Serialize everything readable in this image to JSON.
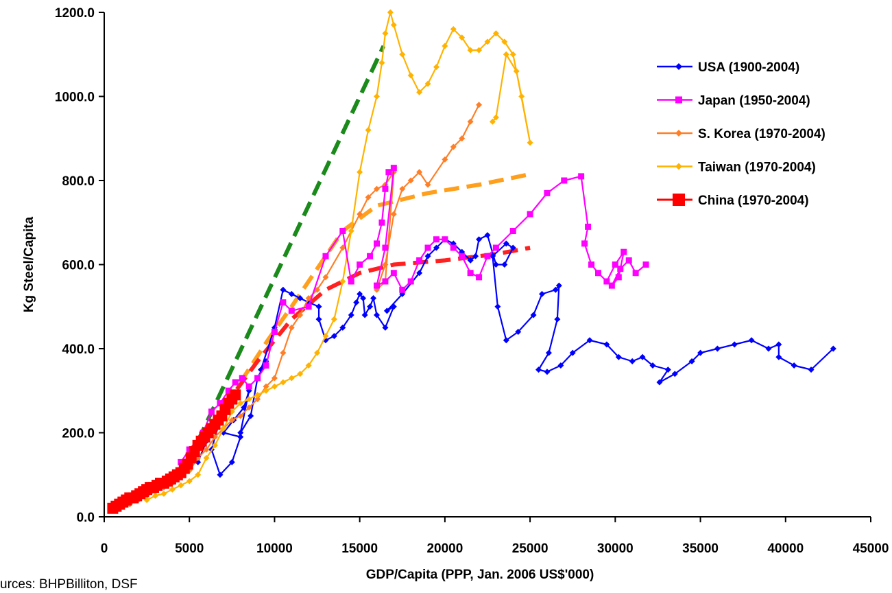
{
  "chart_data": {
    "type": "line",
    "xlabel": "GDP/Capita (PPP, Jan. 2006 US$'000)",
    "ylabel": "Kg Steel/Capita",
    "xlim": [
      0,
      45000
    ],
    "ylim": [
      0,
      1200
    ],
    "xticks": [
      0,
      5000,
      10000,
      15000,
      20000,
      25000,
      30000,
      35000,
      40000,
      45000
    ],
    "xtick_labels": [
      "0",
      "5000",
      "10000",
      "15000",
      "20000",
      "25000",
      "30000",
      "35000",
      "40000",
      "45000"
    ],
    "yticks": [
      0,
      200,
      400,
      600,
      800,
      1000,
      1200
    ],
    "ytick_labels": [
      "0.0",
      "200.0",
      "400.0",
      "600.0",
      "800.0",
      "1000.0",
      "1200.0"
    ],
    "grid": false,
    "legend_position": "top-right",
    "series": [
      {
        "name": "USA (1900-2004)",
        "color": "#0000ff",
        "marker": "diamond",
        "x": [
          5500,
          6000,
          6500,
          7000,
          6300,
          6800,
          7500,
          8000,
          7000,
          7600,
          8200,
          8500,
          8000,
          8600,
          9000,
          9500,
          9200,
          10000,
          10500,
          11000,
          11500,
          12000,
          12600,
          12600,
          13000,
          13500,
          14000,
          14500,
          14800,
          15000,
          15200,
          15300,
          15600,
          15800,
          16000,
          16500,
          17000,
          16600,
          17500,
          18500,
          19000,
          19500,
          20000,
          20500,
          21000,
          21500,
          21800,
          22000,
          22500,
          23000,
          23500,
          24000,
          23600,
          22800,
          23100,
          23600,
          24300,
          25200,
          25700,
          26500,
          26700,
          26600,
          26100,
          25500,
          26000,
          26800,
          27500,
          28500,
          29500,
          30200,
          31000,
          31600,
          32200,
          33100,
          32600,
          33500,
          34500,
          35000,
          36000,
          37000,
          38000,
          39000,
          39600,
          39600,
          40500,
          41500,
          42800
        ],
        "y": [
          130,
          180,
          220,
          260,
          160,
          100,
          130,
          190,
          200,
          230,
          260,
          300,
          200,
          240,
          330,
          370,
          350,
          450,
          540,
          530,
          520,
          510,
          500,
          470,
          420,
          430,
          450,
          480,
          510,
          530,
          520,
          480,
          500,
          520,
          480,
          450,
          500,
          490,
          530,
          580,
          620,
          640,
          660,
          650,
          630,
          610,
          620,
          660,
          670,
          600,
          600,
          640,
          650,
          620,
          500,
          420,
          440,
          480,
          530,
          540,
          550,
          470,
          390,
          350,
          345,
          360,
          390,
          420,
          410,
          380,
          370,
          380,
          360,
          350,
          320,
          340,
          370,
          390,
          400,
          410,
          420,
          400,
          410,
          380,
          360,
          350,
          400
        ]
      },
      {
        "name": "Japan (1950-2004)",
        "color": "#ff00ff",
        "marker": "square",
        "x": [
          4500,
          5000,
          5800,
          6300,
          6800,
          7300,
          7700,
          8100,
          8500,
          9000,
          9500,
          10000,
          10500,
          11000,
          12000,
          13000,
          14000,
          14500,
          15000,
          15600,
          16000,
          16300,
          16500,
          16700,
          17000,
          16500,
          16000,
          16500,
          17000,
          17500,
          18000,
          18500,
          19000,
          19500,
          20000,
          20500,
          21000,
          21500,
          22000,
          22500,
          23000,
          24000,
          25000,
          26000,
          27000,
          28000,
          28400,
          28200,
          28600,
          29000,
          29500,
          30000,
          30500,
          30200,
          29800,
          30300,
          30800,
          31200,
          31800
        ],
        "y": [
          130,
          160,
          200,
          250,
          270,
          300,
          320,
          330,
          310,
          330,
          360,
          440,
          510,
          490,
          500,
          620,
          680,
          560,
          600,
          620,
          650,
          700,
          780,
          820,
          830,
          640,
          550,
          560,
          580,
          540,
          560,
          610,
          640,
          660,
          660,
          640,
          620,
          580,
          570,
          620,
          640,
          680,
          720,
          770,
          800,
          810,
          690,
          650,
          600,
          580,
          560,
          600,
          630,
          570,
          550,
          590,
          610,
          580,
          600
        ]
      },
      {
        "name": "S. Korea (1970-2004)",
        "color": "#ff7f27",
        "marker": "diamond",
        "x": [
          1500,
          2000,
          2500,
          3000,
          3500,
          4000,
          4500,
          5000,
          5500,
          6000,
          6500,
          7000,
          7500,
          8000,
          8500,
          9000,
          9500,
          10000,
          10500,
          11000,
          11500,
          12000,
          12500,
          13000,
          14000,
          15000,
          15500,
          16000,
          16500,
          17000,
          16500,
          16000,
          16500,
          17000,
          17500,
          18000,
          18500,
          19000,
          20000,
          20500,
          21000,
          21500,
          22000
        ],
        "y": [
          30,
          40,
          50,
          60,
          70,
          80,
          100,
          110,
          140,
          160,
          190,
          210,
          230,
          240,
          260,
          280,
          310,
          330,
          390,
          450,
          480,
          520,
          540,
          570,
          640,
          720,
          760,
          780,
          790,
          820,
          560,
          540,
          600,
          720,
          780,
          800,
          820,
          790,
          850,
          880,
          900,
          940,
          980
        ]
      },
      {
        "name": "Taiwan (1970-2004)",
        "color": "#ffb300",
        "marker": "diamond",
        "x": [
          2500,
          3000,
          3500,
          4000,
          4500,
          5000,
          5500,
          6000,
          6500,
          7000,
          7500,
          8000,
          8500,
          9000,
          9500,
          10000,
          10500,
          11000,
          11500,
          12000,
          12500,
          13000,
          13500,
          14000,
          14500,
          15000,
          15500,
          16000,
          16300,
          16500,
          16800,
          17000,
          17500,
          18000,
          18500,
          19000,
          19500,
          20000,
          20500,
          21000,
          21500,
          22000,
          22500,
          23000,
          23500,
          24000,
          24500,
          25000,
          24200,
          23600,
          23000,
          22800
        ],
        "y": [
          40,
          50,
          55,
          65,
          75,
          85,
          100,
          140,
          170,
          210,
          250,
          270,
          280,
          290,
          300,
          310,
          320,
          330,
          340,
          360,
          390,
          430,
          470,
          560,
          680,
          820,
          920,
          1000,
          1080,
          1150,
          1200,
          1170,
          1100,
          1050,
          1010,
          1030,
          1070,
          1120,
          1160,
          1140,
          1110,
          1110,
          1130,
          1150,
          1130,
          1100,
          1000,
          890,
          1060,
          1100,
          950,
          940
        ]
      },
      {
        "name": "China (1970-2004)",
        "color": "#ff0000",
        "marker": "square",
        "x": [
          500,
          700,
          900,
          1100,
          1300,
          1500,
          1700,
          1900,
          2100,
          2300,
          2500,
          2700,
          2900,
          3100,
          3300,
          3500,
          3700,
          3900,
          4100,
          4300,
          4500,
          4700,
          4900,
          5100,
          5300,
          5500,
          5700,
          5900,
          6100,
          6300,
          6500,
          6700,
          6900,
          7100,
          7300,
          7500,
          7700
        ],
        "y": [
          20,
          25,
          30,
          35,
          40,
          45,
          45,
          50,
          55,
          60,
          65,
          70,
          70,
          75,
          80,
          80,
          85,
          90,
          95,
          100,
          105,
          115,
          125,
          140,
          155,
          170,
          180,
          190,
          200,
          210,
          220,
          230,
          240,
          255,
          270,
          280,
          290
        ]
      }
    ],
    "trend_lines": [
      {
        "color": "#1a8a1a",
        "x": [
          5500,
          16400
        ],
        "y": [
          180,
          1120
        ]
      },
      {
        "color": "#ff9f1c",
        "x": [
          8000,
          9600,
          11000,
          12500,
          14000,
          16000,
          19000,
          22000,
          25000
        ],
        "y": [
          320,
          420,
          500,
          590,
          680,
          740,
          770,
          790,
          815
        ]
      },
      {
        "color": "#ff2020",
        "x": [
          7000,
          9000,
          11000,
          13000,
          15000,
          17000,
          20000,
          23000,
          25000
        ],
        "y": [
          260,
          370,
          470,
          540,
          580,
          600,
          610,
          625,
          640
        ]
      }
    ]
  },
  "source_note": "urces: BHPBilliton, DSF"
}
